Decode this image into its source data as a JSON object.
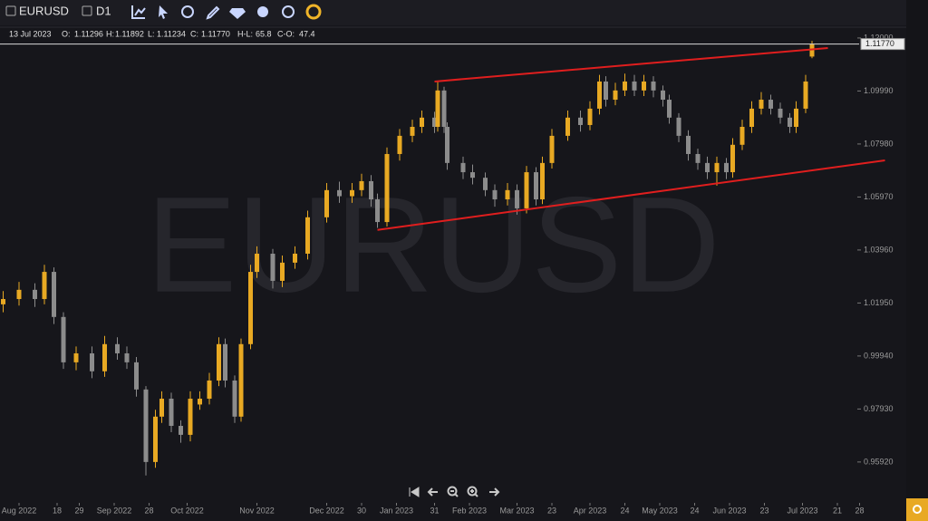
{
  "toolbar": {
    "symbol": "EURUSD",
    "timeframe": "D1"
  },
  "info": {
    "date": "13 Jul 2023",
    "fields": [
      {
        "label": "O:",
        "value": "1.11296"
      },
      {
        "label": "H:",
        "value": "1.11892"
      },
      {
        "label": "L:",
        "value": "1.11234"
      },
      {
        "label": "C:",
        "value": "1.11770"
      },
      {
        "label": "H-L:",
        "value": "65.8"
      },
      {
        "label": "C-O:",
        "value": "47.4"
      }
    ]
  },
  "chart_data": {
    "type": "candlestick",
    "watermark": "EURUSD",
    "up_color": "#e8a923",
    "down_color": "#8c8c8c",
    "xlim": [
      -6,
      268
    ],
    "ylim": [
      0.9461,
      1.1241
    ],
    "xticks": [
      {
        "value": 0,
        "label": "Aug 2022"
      },
      {
        "value": 12,
        "label": "18"
      },
      {
        "value": 19,
        "label": "29"
      },
      {
        "value": 30,
        "label": "Sep 2022"
      },
      {
        "value": 41,
        "label": "28"
      },
      {
        "value": 53,
        "label": "Oct 2022"
      },
      {
        "value": 75,
        "label": "Nov 2022"
      },
      {
        "value": 97,
        "label": "Dec 2022"
      },
      {
        "value": 108,
        "label": "30"
      },
      {
        "value": 119,
        "label": "Jan 2023"
      },
      {
        "value": 131,
        "label": "31"
      },
      {
        "value": 142,
        "label": "Feb 2023"
      },
      {
        "value": 157,
        "label": "Mar 2023"
      },
      {
        "value": 168,
        "label": "23"
      },
      {
        "value": 180,
        "label": "Apr 2023"
      },
      {
        "value": 191,
        "label": "24"
      },
      {
        "value": 202,
        "label": "May 2023"
      },
      {
        "value": 213,
        "label": "24"
      },
      {
        "value": 224,
        "label": "Jun 2023"
      },
      {
        "value": 235,
        "label": "23"
      },
      {
        "value": 247,
        "label": "Jul 2023"
      },
      {
        "value": 258,
        "label": "21"
      },
      {
        "value": 265,
        "label": "28"
      }
    ],
    "yticks": [
      {
        "value": 1.12,
        "label": "1.12000"
      },
      {
        "value": 1.0999,
        "label": "1.09990"
      },
      {
        "value": 1.0798,
        "label": "1.07980"
      },
      {
        "value": 1.0597,
        "label": "1.05970"
      },
      {
        "value": 1.0396,
        "label": "1.03960"
      },
      {
        "value": 1.0195,
        "label": "1.01950"
      },
      {
        "value": 0.9994,
        "label": "0.99940"
      },
      {
        "value": 0.9793,
        "label": "0.97930"
      },
      {
        "value": 0.9592,
        "label": "0.95920"
      }
    ],
    "price_line": {
      "value": 1.1177,
      "label": "1.11770"
    },
    "trendlines": [
      {
        "color": "#e01e1e",
        "x": [
          131,
          255
        ],
        "y": [
          1.1035,
          1.1162
        ]
      },
      {
        "color": "#e01e1e",
        "x": [
          113,
          273
        ],
        "y": [
          1.0472,
          1.0736
        ]
      }
    ],
    "x": [
      -5,
      0,
      5,
      8,
      11,
      14,
      18,
      23,
      27,
      31,
      34,
      37,
      40,
      43,
      45,
      48,
      51,
      54,
      57,
      60,
      63,
      65,
      68,
      70,
      73,
      75,
      80,
      83,
      87,
      91,
      97,
      101,
      105,
      108,
      111,
      113,
      116,
      120,
      124,
      127,
      131,
      132,
      134,
      135,
      140,
      143,
      147,
      150,
      154,
      157,
      160,
      163,
      165,
      168,
      173,
      177,
      180,
      183,
      185,
      188,
      191,
      194,
      197,
      200,
      203,
      205,
      208,
      211,
      214,
      217,
      220,
      223,
      225,
      228,
      231,
      234,
      237,
      240,
      243,
      245,
      248,
      250
    ],
    "ohlc": [
      [
        1.019,
        1.024,
        1.016,
        1.021
      ],
      [
        1.021,
        1.0275,
        1.0185,
        1.0245
      ],
      [
        1.0245,
        1.027,
        1.018,
        1.021
      ],
      [
        1.021,
        1.034,
        1.019,
        1.0313
      ],
      [
        1.0313,
        1.033,
        1.0115,
        1.0142
      ],
      [
        1.0142,
        1.016,
        0.9945,
        0.997
      ],
      [
        0.997,
        1.003,
        0.994,
        1.0004
      ],
      [
        1.0004,
        1.003,
        0.991,
        0.9936
      ],
      [
        0.9936,
        1.007,
        0.9915,
        1.0039
      ],
      [
        1.0039,
        1.0065,
        0.998,
        1.0004
      ],
      [
        1.0004,
        1.003,
        0.9945,
        0.997
      ],
      [
        0.997,
        0.999,
        0.984,
        0.9867
      ],
      [
        0.9867,
        0.988,
        0.9541,
        0.9592
      ],
      [
        0.9592,
        0.979,
        0.957,
        0.9764
      ],
      [
        0.9764,
        0.986,
        0.974,
        0.9832
      ],
      [
        0.9832,
        0.9855,
        0.9705,
        0.9729
      ],
      [
        0.9729,
        0.975,
        0.9665,
        0.9695
      ],
      [
        0.9695,
        0.986,
        0.967,
        0.9832
      ],
      [
        0.981,
        0.986,
        0.979,
        0.9832
      ],
      [
        0.9832,
        0.993,
        0.981,
        0.9901
      ],
      [
        0.9901,
        1.0065,
        0.988,
        1.0039
      ],
      [
        1.0039,
        1.006,
        0.9875,
        0.9901
      ],
      [
        0.9901,
        0.992,
        0.974,
        0.9764
      ],
      [
        0.9764,
        1.006,
        0.9745,
        1.0039
      ],
      [
        1.0039,
        1.034,
        1.002,
        1.0313
      ],
      [
        1.0313,
        1.041,
        1.029,
        1.0382
      ],
      [
        1.0382,
        1.04,
        1.025,
        1.0279
      ],
      [
        1.0279,
        1.0375,
        1.0255,
        1.0348
      ],
      [
        1.0348,
        1.041,
        1.0325,
        1.0382
      ],
      [
        1.0382,
        1.0545,
        1.036,
        1.052
      ],
      [
        1.052,
        1.065,
        1.05,
        1.0623
      ],
      [
        1.0623,
        1.0655,
        1.0575,
        1.06
      ],
      [
        1.06,
        1.065,
        1.0575,
        1.0623
      ],
      [
        1.0623,
        1.0685,
        1.06,
        1.0657
      ],
      [
        1.0657,
        1.068,
        1.056,
        1.0588
      ],
      [
        1.0588,
        1.061,
        1.048,
        1.0502
      ],
      [
        1.0502,
        1.0785,
        1.0485,
        1.076
      ],
      [
        1.076,
        1.0855,
        1.0735,
        1.0829
      ],
      [
        1.0829,
        1.089,
        1.0805,
        1.0863
      ],
      [
        1.0863,
        1.0925,
        1.084,
        1.0898
      ],
      [
        1.0898,
        1.092,
        1.084,
        1.0863
      ],
      [
        1.0863,
        1.1035,
        1.0845,
        1.1001
      ],
      [
        1.1001,
        1.1015,
        1.084,
        1.0863
      ],
      [
        1.0863,
        1.088,
        1.07,
        1.0726
      ],
      [
        1.0726,
        1.075,
        1.0665,
        1.0691
      ],
      [
        1.0691,
        1.072,
        1.0645,
        1.067
      ],
      [
        1.067,
        1.069,
        1.06,
        1.0623
      ],
      [
        1.0623,
        1.0645,
        1.056,
        1.0588
      ],
      [
        1.0588,
        1.065,
        1.0565,
        1.0623
      ],
      [
        1.0623,
        1.0645,
        1.053,
        1.0554
      ],
      [
        1.0554,
        1.0715,
        1.0535,
        1.0691
      ],
      [
        1.0691,
        1.071,
        1.0565,
        1.0588
      ],
      [
        1.0588,
        1.075,
        1.057,
        1.0726
      ],
      [
        1.0726,
        1.0855,
        1.0705,
        1.0829
      ],
      [
        1.0829,
        1.0925,
        1.081,
        1.0898
      ],
      [
        1.0898,
        1.0925,
        1.0845,
        1.087
      ],
      [
        1.087,
        1.096,
        1.085,
        1.0932
      ],
      [
        1.0932,
        1.106,
        1.091,
        1.1035
      ],
      [
        1.1035,
        1.1055,
        1.094,
        1.0966
      ],
      [
        1.0966,
        1.103,
        1.0945,
        1.1001
      ],
      [
        1.1001,
        1.1065,
        1.098,
        1.1035
      ],
      [
        1.1035,
        1.106,
        1.098,
        1.1001
      ],
      [
        1.1001,
        1.106,
        1.098,
        1.1035
      ],
      [
        1.1035,
        1.1055,
        1.0975,
        1.1001
      ],
      [
        1.1001,
        1.102,
        1.094,
        1.0966
      ],
      [
        1.0966,
        1.0985,
        1.0875,
        1.0898
      ],
      [
        1.0898,
        1.0915,
        1.0805,
        1.0829
      ],
      [
        1.0829,
        1.085,
        1.0735,
        1.076
      ],
      [
        1.076,
        1.078,
        1.07,
        1.0726
      ],
      [
        1.0726,
        1.075,
        1.0665,
        1.0691
      ],
      [
        1.0691,
        1.075,
        1.064,
        1.0726
      ],
      [
        1.0726,
        1.0745,
        1.0665,
        1.0691
      ],
      [
        1.0691,
        1.082,
        1.067,
        1.0795
      ],
      [
        1.0795,
        1.089,
        1.0775,
        1.0863
      ],
      [
        1.0863,
        1.096,
        1.084,
        1.0932
      ],
      [
        1.0932,
        1.0995,
        1.091,
        1.0966
      ],
      [
        1.0966,
        1.0985,
        1.091,
        1.0932
      ],
      [
        1.0932,
        1.0955,
        1.0875,
        1.0898
      ],
      [
        1.0898,
        1.0915,
        1.084,
        1.0863
      ],
      [
        1.0863,
        1.096,
        1.084,
        1.0932
      ],
      [
        1.0932,
        1.106,
        1.0915,
        1.1035
      ],
      [
        1.11296,
        1.11892,
        1.11234,
        1.1177
      ]
    ]
  }
}
